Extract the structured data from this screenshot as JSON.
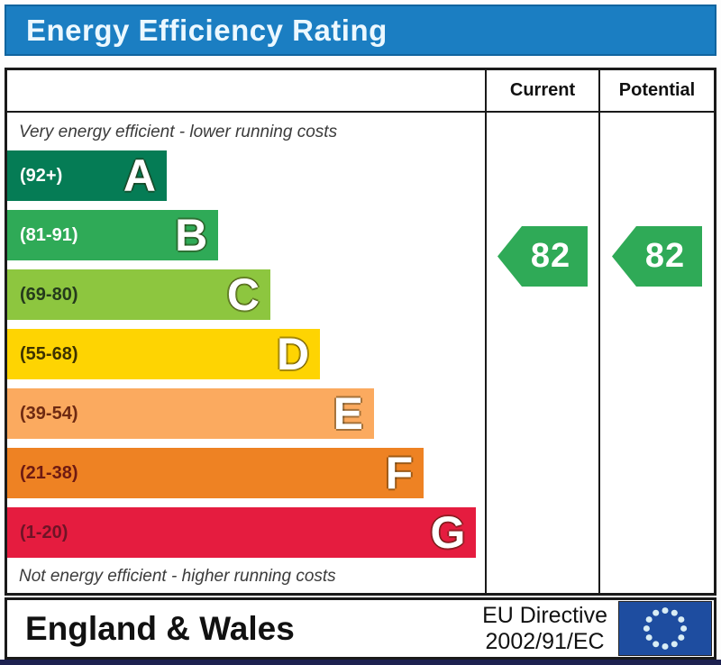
{
  "title": "Energy Efficiency Rating",
  "columns": {
    "current": "Current",
    "potential": "Potential"
  },
  "chart_data": {
    "type": "bar",
    "subtype": "epc-energy-efficiency-rating",
    "title": "Energy Efficiency Rating",
    "top_caption": "Very energy efficient - lower running costs",
    "bottom_caption": "Not energy efficient - higher running costs",
    "legend_position": "right-columns",
    "bands": [
      {
        "letter": "A",
        "range": "(92+)",
        "color": "#057c55",
        "range_color": "#ffffff",
        "width_pct": 33.4
      },
      {
        "letter": "B",
        "range": "(81-91)",
        "color": "#2faa57",
        "range_color": "#ffffff",
        "width_pct": 44.2
      },
      {
        "letter": "C",
        "range": "(69-80)",
        "color": "#8dc63f",
        "range_color": "#243a1c",
        "width_pct": 55.1
      },
      {
        "letter": "D",
        "range": "(55-68)",
        "color": "#fed402",
        "range_color": "#3e3200",
        "width_pct": 65.5
      },
      {
        "letter": "E",
        "range": "(39-54)",
        "color": "#fbaa5f",
        "range_color": "#6e2a12",
        "width_pct": 76.8
      },
      {
        "letter": "F",
        "range": "(21-38)",
        "color": "#ee8223",
        "range_color": "#6e1a12",
        "width_pct": 87.2
      },
      {
        "letter": "G",
        "range": "(1-20)",
        "color": "#e51c3f",
        "range_color": "#6e1426",
        "width_pct": 98.2
      }
    ],
    "current": {
      "value": 82,
      "band": "B",
      "color": "#2faa57"
    },
    "potential": {
      "value": 82,
      "band": "B",
      "color": "#2faa57"
    }
  },
  "footer": {
    "region": "England & Wales",
    "directive_line1": "EU Directive",
    "directive_line2": "2002/91/EC",
    "eu_flag": {
      "background": "#1e4da0",
      "star_color": "#d9edf5"
    }
  },
  "colors": {
    "title_bar": "#1b7ec2",
    "title_text": "#ecf8ff",
    "table_border": "#1a1a1a",
    "bottom_strip": "#1d2150"
  }
}
